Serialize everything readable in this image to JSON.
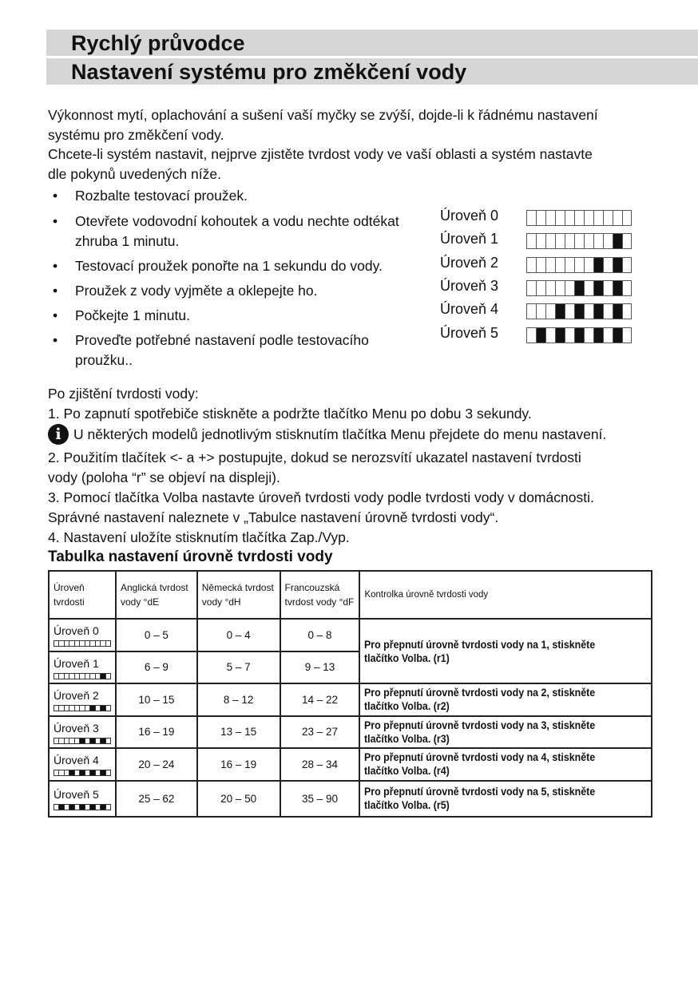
{
  "header": {
    "title1": "Rychlý průvodce",
    "title2": "Nastavení systému pro změkčení vody"
  },
  "intro": [
    "Výkonnost mytí, oplachování a sušení vaší myčky se zvýší, dojde-li k řádnému nastavení",
    "systému pro změkčení vody.",
    "Chcete-li systém nastavit, nejprve zjistěte tvrdost vody ve vaší oblasti a systém nastavte",
    "dle pokynů uvedených níže."
  ],
  "bullets": [
    [
      "Rozbalte testovací proužek."
    ],
    [
      "Otevřete vodovodní kohoutek a vodu nechte odtékat",
      "zhruba 1 minutu."
    ],
    [
      "Testovací proužek ponořte na 1 sekundu do vody."
    ],
    [
      "Proužek z vody vyjměte a oklepejte ho."
    ],
    [
      "Počkejte 1 minutu."
    ],
    [
      "Proveďte potřebné nastavení podle testovacího",
      "proužku.."
    ]
  ],
  "strip_levels": [
    {
      "label": "Úroveň 0",
      "dark": 0
    },
    {
      "label": "Úroveň 1",
      "dark": 1
    },
    {
      "label": "Úroveň 2",
      "dark": 2
    },
    {
      "label": "Úroveň 3",
      "dark": 3
    },
    {
      "label": "Úroveň 4",
      "dark": 4
    },
    {
      "label": "Úroveň 5",
      "dark": 5
    }
  ],
  "steps": {
    "l1": "Po zjištění tvrdosti vody:",
    "l2": "1. Po zapnutí spotřebiče stiskněte a podržte tlačítko Menu po dobu 3 sekundy.",
    "info": "U některých modelů jednotlivým stisknutím tlačítka Menu přejdete do menu nastavení.",
    "l3": " 2. Použitím tlačítek <- a +> postupujte, dokud se nerozsvítí ukazatel nastavení tvrdosti",
    "l4": "vody (poloha “r” se objeví na displeji).",
    "l5": "3. Pomocí tlačítka Volba nastavte úroveň tvrdosti vody podle tvrdosti vody v domácnosti.",
    "l6": "Správné nastavení naleznete v „Tabulce nastavení úrovně tvrdosti vody“.",
    "l7": "4. Nastavení uložíte stisknutím tlačítka Zap./Vyp."
  },
  "table": {
    "title": "Tabulka nastavení úrovně tvrdosti vody",
    "headers": [
      "Úroveň tvrdosti",
      "Anglická tvrdost vody °dE",
      "Německá tvrdost vody °dH",
      "Francouzská tvrdost vody °dF",
      "Kontrolka úrovně tvrdosti vody"
    ],
    "rows": [
      {
        "level": "Úroveň 0",
        "dark": 0,
        "dE": "0 – 5",
        "dH": "0 – 4",
        "dF": "0 – 8",
        "ctl": "Pro přepnutí úrovně tvrdosti vody na 1, stiskněte tlačítko Volba. (r1)",
        "span": 2
      },
      {
        "level": "Úroveň 1",
        "dark": 1,
        "dE": "6 – 9",
        "dH": "5 – 7",
        "dF": "9 – 13"
      },
      {
        "level": "Úroveň 2",
        "dark": 2,
        "dE": "10 – 15",
        "dH": "8 – 12",
        "dF": "14 – 22",
        "ctl": "Pro přepnutí úrovně tvrdosti vody na 2, stiskněte tlačítko Volba. (r2)"
      },
      {
        "level": "Úroveň 3",
        "dark": 3,
        "dE": "16 – 19",
        "dH": "13 – 15",
        "dF": "23 – 27",
        "ctl": "Pro přepnutí úrovně tvrdosti vody na 3, stiskněte tlačítko Volba. (r3)"
      },
      {
        "level": "Úroveň 4",
        "dark": 4,
        "dE": "20 – 24",
        "dH": "16 – 19",
        "dF": "28 – 34",
        "ctl": "Pro přepnutí úrovně tvrdosti vody na 4, stiskněte tlačítko Volba. (r4)"
      },
      {
        "level": "Úroveň 5",
        "dark": 5,
        "dE": "25 – 62",
        "dH": "20 – 50",
        "dF": "35 – 90",
        "ctl": "Pro přepnutí úrovně tvrdosti vody na 5, stiskněte tlačítko Volba. (r5)"
      }
    ]
  }
}
